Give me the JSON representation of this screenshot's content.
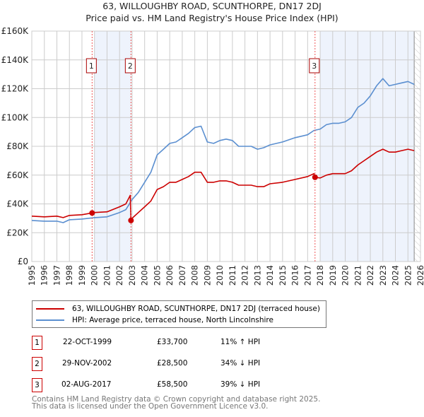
{
  "title_line1": "63, WILLOUGHBY ROAD, SCUNTHORPE, DN17 2DJ",
  "title_line2": "Price paid vs. HM Land Registry's House Price Index (HPI)",
  "colors": {
    "property": "#cc0000",
    "hpi": "#5b8fd0",
    "shade": "#eef3fc",
    "grid": "#cccccc"
  },
  "chart_data": {
    "type": "line",
    "xlim": [
      1995,
      2026
    ],
    "ylim": [
      0,
      160000
    ],
    "y_ticks": [
      0,
      20000,
      40000,
      60000,
      80000,
      100000,
      120000,
      140000,
      160000
    ],
    "y_tick_labels": [
      "£0",
      "£20K",
      "£40K",
      "£60K",
      "£80K",
      "£100K",
      "£120K",
      "£140K",
      "£160K"
    ],
    "x_ticks": [
      "1995",
      "1996",
      "1997",
      "1998",
      "1999",
      "2000",
      "2001",
      "2002",
      "2003",
      "2004",
      "2005",
      "2006",
      "2007",
      "2008",
      "2009",
      "2010",
      "2011",
      "2012",
      "2013",
      "2014",
      "2015",
      "2016",
      "2017",
      "2018",
      "2019",
      "2020",
      "2021",
      "2022",
      "2023",
      "2024",
      "2025",
      "2026"
    ],
    "shaded_ranges": [
      [
        2000,
        2002.91
      ],
      [
        2018,
        2025.5
      ]
    ],
    "hatched_from": 2025.5,
    "series": [
      {
        "name": "63, WILLOUGHBY ROAD, SCUNTHORPE, DN17 2DJ (terraced house)",
        "color": "#cc0000",
        "x": [
          1995,
          1996,
          1997,
          1997.5,
          1998,
          1999,
          1999.81,
          2000,
          2001,
          2002,
          2002.5,
          2002.85,
          2002.91,
          2003,
          2003.5,
          2004,
          2004.5,
          2005,
          2005.5,
          2006,
          2006.5,
          2007,
          2007.5,
          2008,
          2008.5,
          2009,
          2009.5,
          2010,
          2010.5,
          2011,
          2011.5,
          2012,
          2012.5,
          2013,
          2013.5,
          2014,
          2015,
          2016,
          2017,
          2017.5,
          2017.59,
          2018,
          2018.5,
          2019,
          2019.5,
          2020,
          2020.5,
          2021,
          2021.5,
          2022,
          2022.5,
          2023,
          2023.5,
          2024,
          2024.5,
          2025,
          2025.5
        ],
        "y": [
          31500,
          31000,
          31500,
          30500,
          32000,
          32500,
          33700,
          34000,
          34500,
          38000,
          40000,
          46000,
          28500,
          30000,
          34000,
          38000,
          42000,
          50000,
          52000,
          55000,
          55000,
          57000,
          59000,
          62000,
          62000,
          55000,
          55000,
          56000,
          56000,
          55000,
          53000,
          53000,
          53000,
          52000,
          52000,
          54000,
          55000,
          57000,
          59000,
          61000,
          58500,
          58000,
          60000,
          61000,
          61000,
          61000,
          63000,
          67000,
          70000,
          73000,
          76000,
          78000,
          76000,
          76000,
          77000,
          78000,
          77000
        ]
      },
      {
        "name": "HPI: Average price, terraced house, North Lincolnshire",
        "color": "#5b8fd0",
        "x": [
          1995,
          1996,
          1997,
          1997.5,
          1998,
          1999,
          2000,
          2001,
          2002,
          2002.5,
          2003,
          2003.5,
          2004,
          2004.5,
          2005,
          2005.5,
          2006,
          2006.5,
          2007,
          2007.5,
          2008,
          2008.5,
          2009,
          2009.5,
          2010,
          2010.5,
          2011,
          2011.5,
          2012,
          2012.5,
          2013,
          2013.5,
          2014,
          2015,
          2016,
          2017,
          2017.5,
          2018,
          2018.5,
          2019,
          2019.5,
          2020,
          2020.5,
          2021,
          2021.5,
          2022,
          2022.5,
          2023,
          2023.5,
          2024,
          2024.5,
          2025,
          2025.5
        ],
        "y": [
          28500,
          28000,
          28000,
          27000,
          29000,
          29500,
          30500,
          31000,
          34000,
          36000,
          43000,
          48000,
          55000,
          62000,
          74000,
          78000,
          82000,
          83000,
          86000,
          89000,
          93000,
          94000,
          83000,
          82000,
          84000,
          85000,
          84000,
          80000,
          80000,
          80000,
          78000,
          79000,
          81000,
          83000,
          86000,
          88000,
          91000,
          92000,
          95000,
          96000,
          96000,
          97000,
          100000,
          107000,
          110000,
          115000,
          122000,
          127000,
          122000,
          123000,
          124000,
          125000,
          123000
        ]
      }
    ],
    "sales": [
      {
        "label": "1",
        "x": 1999.81,
        "y": 33700
      },
      {
        "label": "2",
        "x": 2002.91,
        "y": 28500
      },
      {
        "label": "3",
        "x": 2017.59,
        "y": 58500
      }
    ]
  },
  "legend": {
    "property": "63, WILLOUGHBY ROAD, SCUNTHORPE, DN17 2DJ (terraced house)",
    "hpi": "HPI: Average price, terraced house, North Lincolnshire"
  },
  "transactions": [
    {
      "num": "1",
      "date": "22-OCT-1999",
      "price": "£33,700",
      "hpi": "11% ↑ HPI"
    },
    {
      "num": "2",
      "date": "29-NOV-2002",
      "price": "£28,500",
      "hpi": "34% ↓ HPI"
    },
    {
      "num": "3",
      "date": "02-AUG-2017",
      "price": "£58,500",
      "hpi": "39% ↓ HPI"
    }
  ],
  "footer": {
    "line1": "Contains HM Land Registry data © Crown copyright and database right 2025.",
    "line2": "This data is licensed under the Open Government Licence v3.0."
  }
}
